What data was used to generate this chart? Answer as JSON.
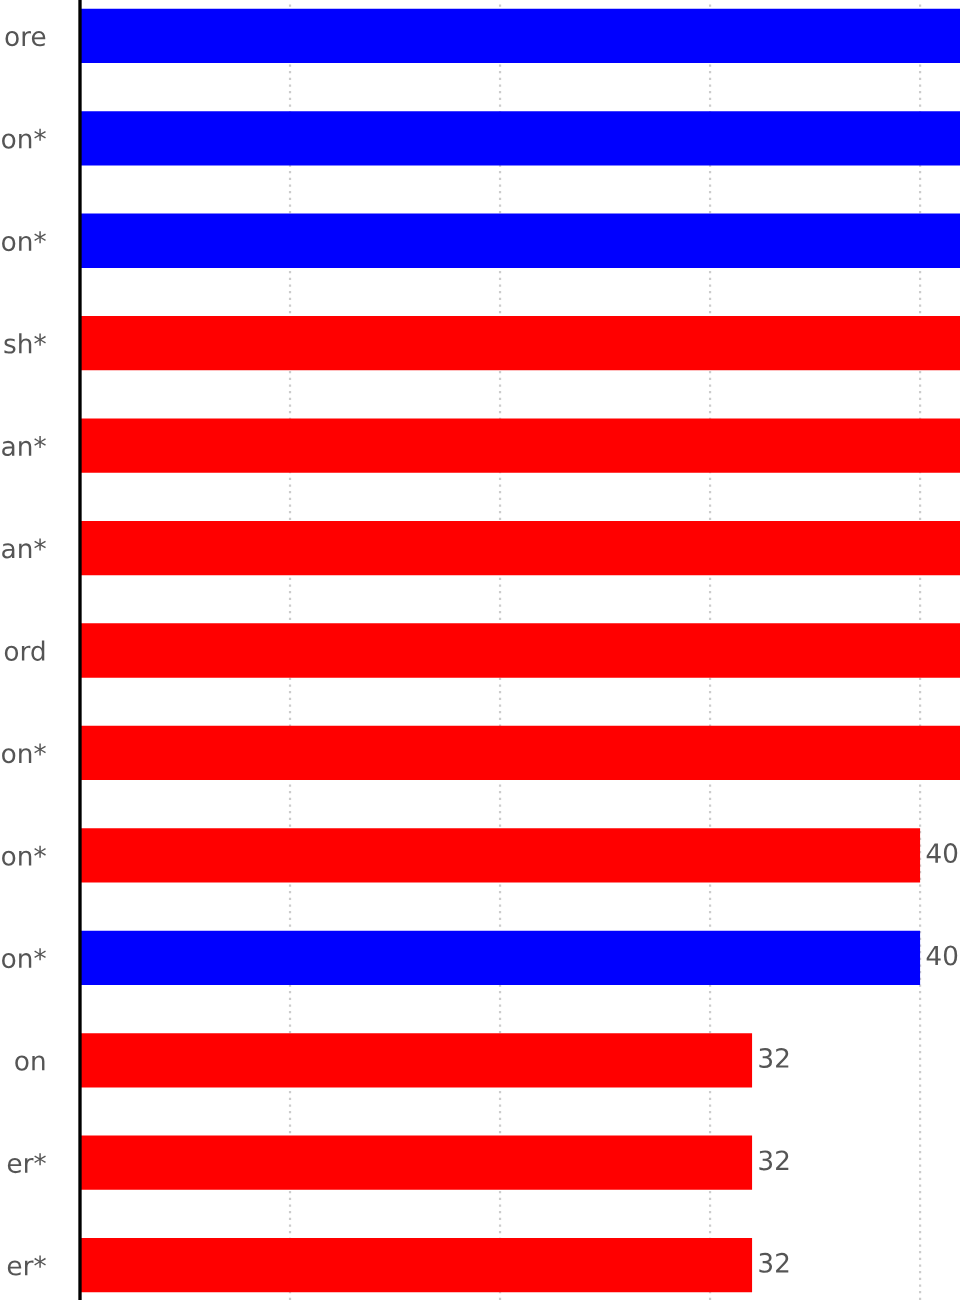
{
  "chart_data": {
    "type": "bar",
    "orientation": "horizontal",
    "categories": [
      "ore",
      "on*",
      "on*",
      "sh*",
      "an*",
      "an*",
      "ord",
      "on*",
      "on*",
      "on*",
      "on",
      "er*",
      "er*"
    ],
    "values": [
      41.9,
      41.9,
      41.9,
      41.9,
      41.9,
      41.9,
      41.9,
      41.9,
      40,
      40,
      32,
      32,
      32
    ],
    "colors": [
      "#0000ff",
      "#0000ff",
      "#0000ff",
      "#ff0000",
      "#ff0000",
      "#ff0000",
      "#ff0000",
      "#ff0000",
      "#ff0000",
      "#0000ff",
      "#ff0000",
      "#ff0000",
      "#ff0000"
    ],
    "value_labels": [
      null,
      null,
      null,
      null,
      null,
      null,
      null,
      null,
      "40",
      "40",
      "32",
      "32",
      "32"
    ],
    "xlim": [
      0,
      41.9
    ],
    "xticks": [
      {
        "value": 10,
        "label": null
      },
      {
        "value": 20,
        "label": null
      },
      {
        "value": 30,
        "label": null
      },
      {
        "value": 40,
        "label": null
      }
    ],
    "grid": "x",
    "tick_labels": "y"
  }
}
